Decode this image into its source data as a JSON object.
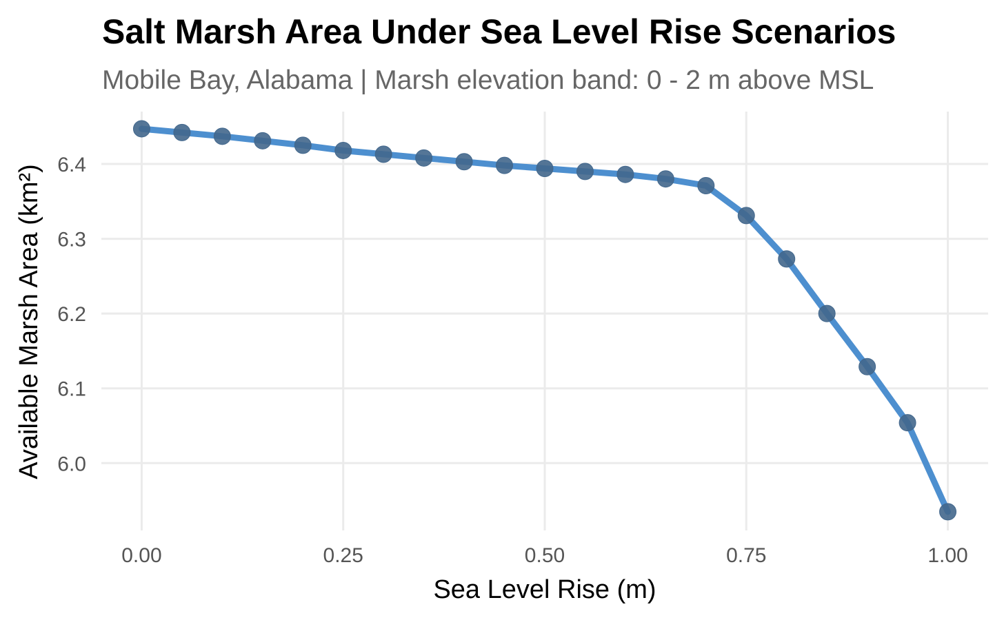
{
  "chart_data": {
    "type": "line",
    "title": "Salt Marsh Area Under Sea Level Rise Scenarios",
    "subtitle": "Mobile Bay, Alabama | Marsh elevation band: 0 - 2 m above MSL",
    "xlabel": "Sea Level Rise (m)",
    "ylabel": "Available Marsh Area (km²)",
    "xlim": [
      -0.05,
      1.05
    ],
    "ylim": [
      5.91,
      6.47
    ],
    "x_ticks": [
      0.0,
      0.25,
      0.5,
      0.75,
      1.0
    ],
    "x_tick_labels": [
      "0.00",
      "0.25",
      "0.50",
      "0.75",
      "1.00"
    ],
    "y_ticks": [
      6.0,
      6.1,
      6.2,
      6.3,
      6.4
    ],
    "y_tick_labels": [
      "6.0",
      "6.1",
      "6.2",
      "6.3",
      "6.4"
    ],
    "grid": true,
    "legend": "none",
    "series": [
      {
        "x": [
          0.0,
          0.05,
          0.1,
          0.15,
          0.2,
          0.25,
          0.3,
          0.35,
          0.4,
          0.45,
          0.5,
          0.55,
          0.6,
          0.65,
          0.7,
          0.75,
          0.8,
          0.85,
          0.9,
          0.95,
          1.0
        ],
        "values": [
          6.447,
          6.442,
          6.437,
          6.431,
          6.425,
          6.418,
          6.413,
          6.408,
          6.403,
          6.398,
          6.394,
          6.39,
          6.386,
          6.38,
          6.371,
          6.331,
          6.273,
          6.2,
          6.129,
          6.054,
          5.935
        ],
        "line_color": "#4d8fcf",
        "point_color": "#42678c"
      }
    ],
    "colors": {
      "grid": "#ebebeb",
      "background": "#ffffff"
    }
  }
}
